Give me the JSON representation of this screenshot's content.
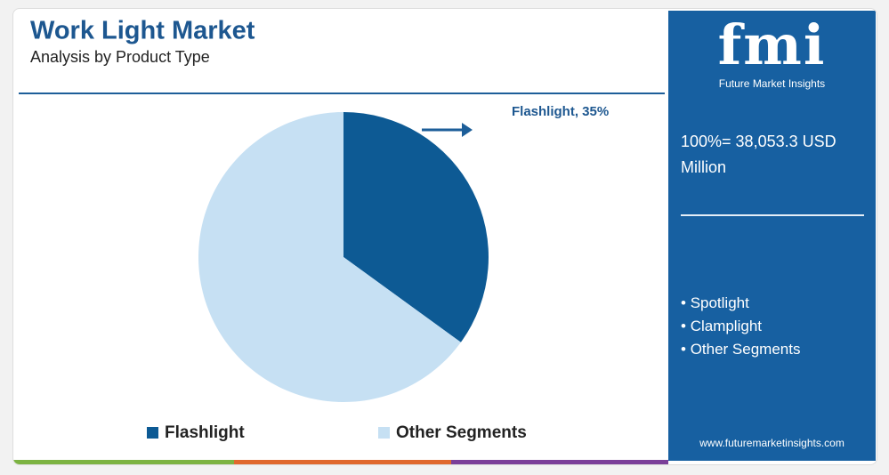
{
  "chart_data": {
    "type": "pie",
    "title": "Work Light Market",
    "subtitle": "Analysis by Product Type",
    "categories": [
      "Flashlight",
      "Other Segments"
    ],
    "values": [
      35,
      65
    ],
    "value_labels": [
      "Flashlight, 35%",
      null
    ],
    "colors": [
      "#0d5a94",
      "#c6e0f3"
    ]
  },
  "panel": {
    "logo": "fmi",
    "logo_caption": "Future Market Insights",
    "total": "100%= 38,053.3 USD Million",
    "segments": [
      "Spotlight",
      "Clamplight",
      "Other Segments"
    ],
    "website": "www.futuremarketinsights.com"
  }
}
